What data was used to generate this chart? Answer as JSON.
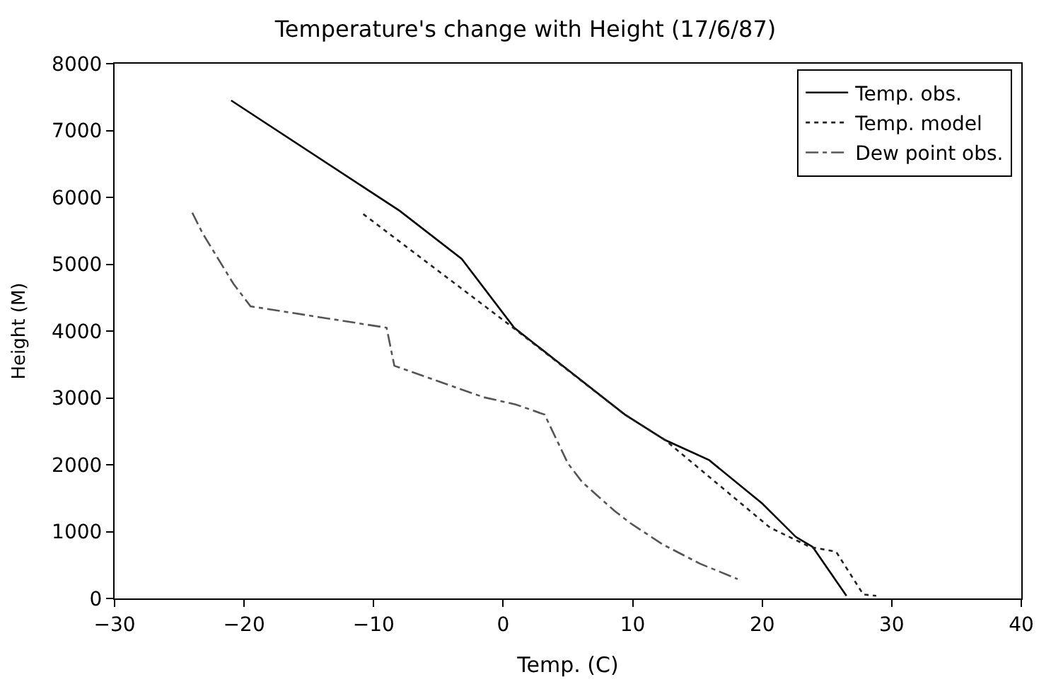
{
  "chart_data": {
    "type": "line",
    "title": "Temperature's change with Height (17/6/87)",
    "xlabel": "Temp. (C)",
    "ylabel": "Height (M)",
    "xlim": [
      -30,
      40
    ],
    "xticks": [
      -30,
      -20,
      -10,
      0,
      10,
      20,
      30,
      40
    ],
    "ylim": [
      0,
      8000
    ],
    "yticks": [
      0,
      1000,
      2000,
      3000,
      4000,
      5000,
      6000,
      7000,
      8000
    ],
    "legend": "top right",
    "marker": "none",
    "series": [
      {
        "name": "Temp. obs.",
        "color": "#000000",
        "line_style": "solid",
        "x": [
          -21,
          -8,
          -3.2,
          0.85,
          9.4,
          12.5,
          15.9,
          20.0,
          22.6,
          23.9,
          26.5
        ],
        "values": [
          7450,
          5800,
          5080,
          4050,
          2750,
          2370,
          2070,
          1420,
          920,
          770,
          40
        ]
      },
      {
        "name": "Temp. model",
        "color": "#222222",
        "line_style": "dotted",
        "x": [
          -10.8,
          0.3,
          9.4,
          12.5,
          20.6,
          23.7,
          25.7,
          27.8,
          28.8
        ],
        "values": [
          5750,
          4120,
          2750,
          2370,
          1060,
          770,
          700,
          60,
          40
        ]
      },
      {
        "name": "Dew point obs.",
        "color": "#555555",
        "line_style": "dashed",
        "x": [
          -24,
          -23.2,
          -20.8,
          -19.5,
          -9,
          -8.4,
          -1.5,
          1,
          3.2,
          5.0,
          6.1,
          8.6,
          9.8,
          12.3,
          15.2,
          18.1
        ],
        "values": [
          5770,
          5460,
          4700,
          4370,
          4050,
          3480,
          3010,
          2900,
          2750,
          2020,
          1740,
          1310,
          1130,
          810,
          520,
          290
        ]
      }
    ]
  }
}
